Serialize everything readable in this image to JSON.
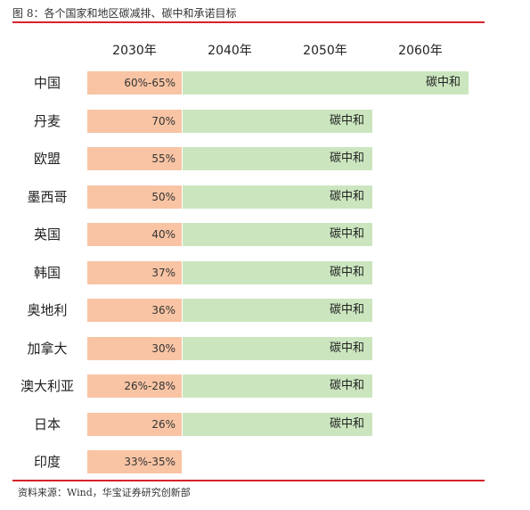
{
  "title": "图 8：各个国家和地区碳减排、碳中和承诺目标",
  "source": "资料来源：Wind，华宝证券研究创新部",
  "colors": {
    "rule": "#d6232a",
    "target_2030": "#f8c4a4",
    "carbon_neutral": "#cbe6bf"
  },
  "chart_data": {
    "type": "table",
    "columns": [
      "2030年",
      "2040年",
      "2050年",
      "2060年"
    ],
    "rows": [
      {
        "country": "中国",
        "target_2030": "60%-65%",
        "neutral_label": "碳中和",
        "neutral_year": 2060
      },
      {
        "country": "丹麦",
        "target_2030": "70%",
        "neutral_label": "碳中和",
        "neutral_year": 2050
      },
      {
        "country": "欧盟",
        "target_2030": "55%",
        "neutral_label": "碳中和",
        "neutral_year": 2050
      },
      {
        "country": "墨西哥",
        "target_2030": "50%",
        "neutral_label": "碳中和",
        "neutral_year": 2050
      },
      {
        "country": "英国",
        "target_2030": "40%",
        "neutral_label": "碳中和",
        "neutral_year": 2050
      },
      {
        "country": "韩国",
        "target_2030": "37%",
        "neutral_label": "碳中和",
        "neutral_year": 2050
      },
      {
        "country": "奥地利",
        "target_2030": "36%",
        "neutral_label": "碳中和",
        "neutral_year": 2050
      },
      {
        "country": "加拿大",
        "target_2030": "30%",
        "neutral_label": "碳中和",
        "neutral_year": 2050
      },
      {
        "country": "澳大利亚",
        "target_2030": "26%-28%",
        "neutral_label": "碳中和",
        "neutral_year": 2050
      },
      {
        "country": "日本",
        "target_2030": "26%",
        "neutral_label": "碳中和",
        "neutral_year": 2050
      },
      {
        "country": "印度",
        "target_2030": "33%-35%",
        "neutral_label": "",
        "neutral_year": null
      }
    ]
  }
}
